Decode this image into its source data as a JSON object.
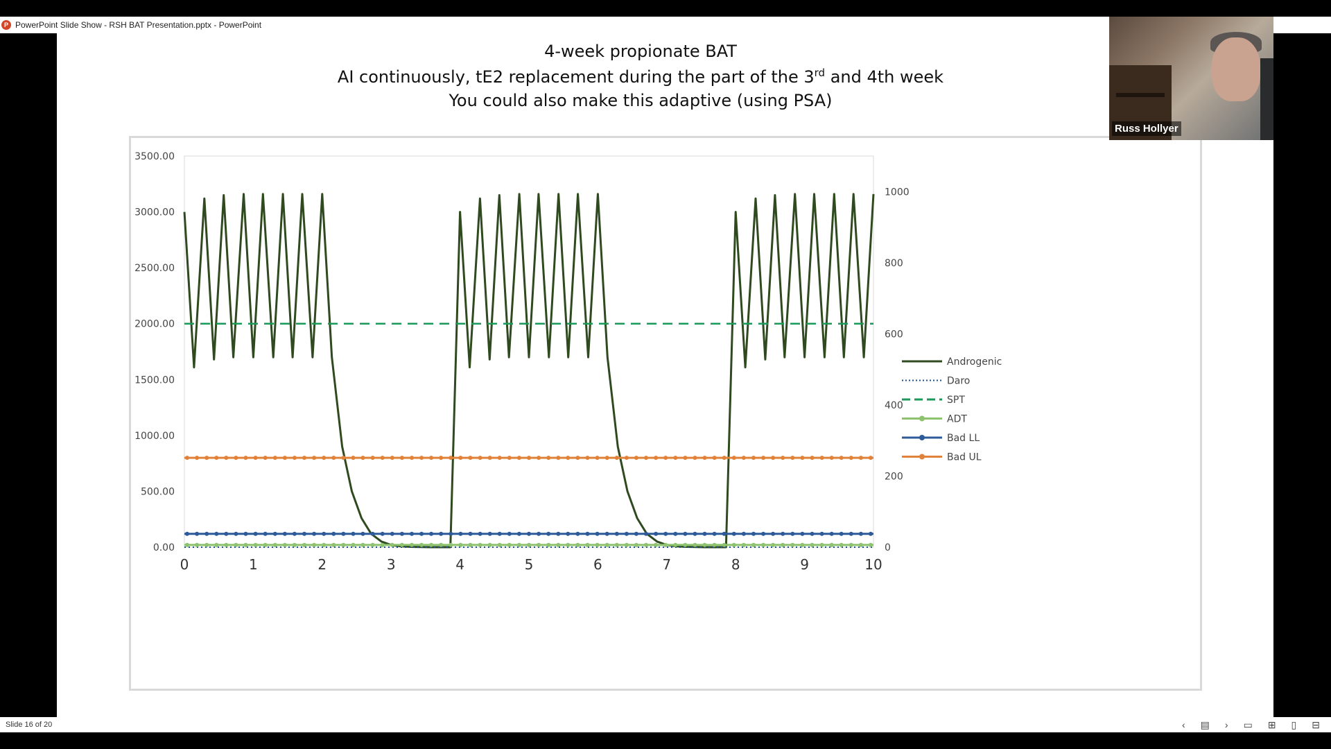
{
  "window": {
    "title": "PowerPoint Slide Show  -  RSH BAT Presentation.pptx - PowerPoint"
  },
  "slide": {
    "title_line1": "4-week propionate BAT",
    "title_line2_a": "AI continuously, tE2 replacement during the part of the 3",
    "title_line2_sup": "rd",
    "title_line2_b": " and 4th week",
    "title_line3": "You could also make this adaptive (using PSA)"
  },
  "webcam": {
    "participant_name": "Russ Hollyer"
  },
  "status": {
    "slide_counter": "Slide 16 of 20"
  },
  "icons": [
    "previous-slide-icon",
    "slide-menu-icon",
    "next-slide-icon",
    "normal-view-icon",
    "slide-sorter-icon",
    "reading-view-icon",
    "slide-show-icon"
  ],
  "chart_data": {
    "type": "line",
    "title": "",
    "xlabel": "",
    "ylabel": "",
    "xlim": [
      0,
      10
    ],
    "ylim": [
      0,
      3500
    ],
    "y2lim": [
      0,
      1100
    ],
    "x_ticks": [
      "0",
      "1",
      "2",
      "3",
      "4",
      "5",
      "6",
      "7",
      "8",
      "9",
      "10"
    ],
    "y_ticks": [
      "0.00",
      "500.00",
      "1000.00",
      "1500.00",
      "2000.00",
      "2500.00",
      "3000.00",
      "3500.00"
    ],
    "y2_ticks": [
      "0",
      "200",
      "400",
      "600",
      "800",
      "1000"
    ],
    "legend_position": "right",
    "grid": false,
    "series": [
      {
        "name": "Androgenic",
        "color": "#2f4a1f",
        "style": "solid",
        "x": [
          0,
          0.14,
          0.29,
          0.43,
          0.57,
          0.71,
          0.86,
          1.0,
          1.14,
          1.29,
          1.43,
          1.57,
          1.71,
          1.86,
          2.0,
          2.14,
          2.29,
          2.43,
          2.57,
          2.71,
          2.86,
          3.0,
          3.14,
          3.29,
          3.43,
          3.57,
          3.71,
          3.86,
          4.0,
          4.14,
          4.29,
          4.43,
          4.57,
          4.71,
          4.86,
          5.0,
          5.14,
          5.29,
          5.43,
          5.57,
          5.71,
          5.86,
          6.0,
          6.14,
          6.29,
          6.43,
          6.57,
          6.71,
          6.86,
          7.0,
          7.14,
          7.29,
          7.43,
          7.57,
          7.71,
          7.86,
          8.0,
          8.14,
          8.29,
          8.43,
          8.57,
          8.71,
          8.86,
          9.0,
          9.14,
          9.29,
          9.43,
          9.57,
          9.71,
          9.86,
          10.0
        ],
        "y": [
          3000,
          1610,
          3120,
          1680,
          3150,
          1700,
          3160,
          1700,
          3160,
          1700,
          3160,
          1700,
          3160,
          1700,
          3160,
          1700,
          900,
          500,
          260,
          120,
          50,
          20,
          8,
          3,
          1,
          0,
          0,
          0,
          3000,
          1610,
          3120,
          1680,
          3150,
          1700,
          3160,
          1700,
          3160,
          1700,
          3160,
          1700,
          3160,
          1700,
          3160,
          1700,
          900,
          500,
          260,
          120,
          50,
          20,
          8,
          3,
          1,
          0,
          0,
          0,
          3000,
          1610,
          3120,
          1680,
          3150,
          1700,
          3160,
          1700,
          3160,
          1700,
          3160,
          1700,
          3160,
          1700,
          3160
        ]
      },
      {
        "name": "Daro",
        "color": "#1f4e8c",
        "style": "dotted",
        "x": [
          0,
          10
        ],
        "y": [
          0,
          0
        ]
      },
      {
        "name": "SPT",
        "color": "#1a9a5a",
        "style": "dashed",
        "x": [
          0,
          10
        ],
        "y": [
          2000,
          2000
        ]
      },
      {
        "name": "ADT",
        "color": "#8dc26f",
        "style": "solid-marker",
        "x": [
          0,
          10
        ],
        "y": [
          20,
          20
        ]
      },
      {
        "name": "Bad LL",
        "color": "#2d5a99",
        "style": "solid-marker",
        "x": [
          0,
          10
        ],
        "y": [
          120,
          120
        ]
      },
      {
        "name": "Bad UL",
        "color": "#e0823a",
        "style": "solid-marker",
        "x": [
          0,
          10
        ],
        "y": [
          800,
          800
        ]
      }
    ]
  }
}
